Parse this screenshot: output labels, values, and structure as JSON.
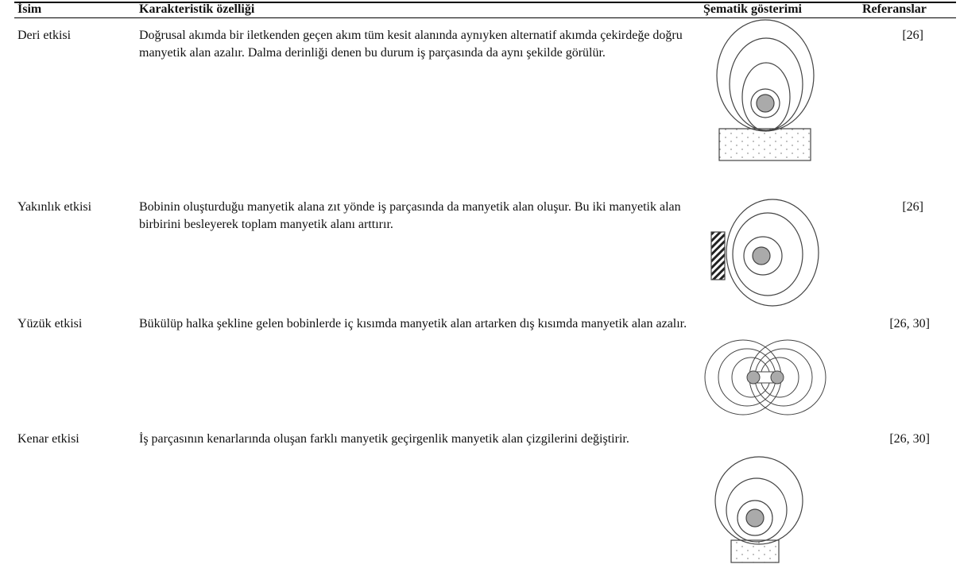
{
  "header": {
    "name": "İsim",
    "characteristic": "Karakteristik özelliği",
    "schematic": "Şematik gösterimi",
    "references": "Referanslar"
  },
  "table": {
    "rows": [
      [
        "Deri etkisi",
        "Doğrusal akımda bir iletkenden geçen akım tüm kesit alanında aynıyken alternatif akımda çekirdeğe doğru manyetik alan azalır. Dalma derinliği denen bu durum iş parçasında da aynı şekilde görülür.",
        "[26]"
      ],
      [
        "Yakınlık etkisi",
        "Bobinin oluşturduğu manyetik alana zıt yönde iş parçasında da manyetik alan oluşur. Bu iki manyetik alan birbirini besleyerek toplam manyetik alanı arttırır.",
        "[26]"
      ],
      [
        "Yüzük etkisi",
        "Bükülüp halka şekline gelen bobinlerde iç kısımda manyetik alan artarken dış kısımda manyetik alan azalır.",
        "[26, 30]"
      ],
      [
        "Kenar etkisi",
        "İş parçasının kenarlarında oluşan farklı manyetik geçirgenlik manyetik alan çizgilerini değiştirir.",
        "[26, 30]"
      ]
    ]
  }
}
